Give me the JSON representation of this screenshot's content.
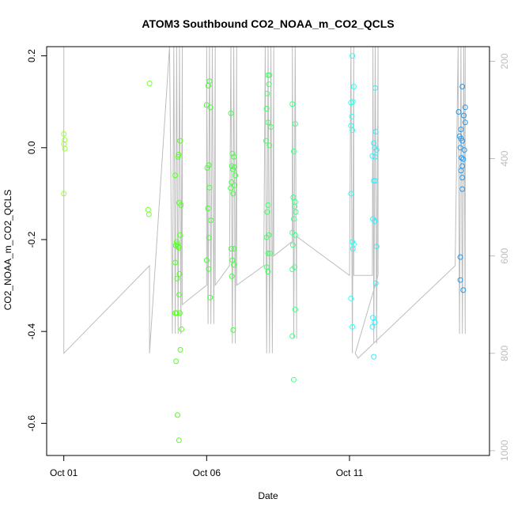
{
  "chart_data": {
    "type": "scatter",
    "title": "ATOM3 Southbound CO2_NOAA_m_CO2_QCLS",
    "xlabel": "Date",
    "ylabel": "CO2_NOAA_m_CO2_QCLS",
    "x_ticks": [
      "Oct 01",
      "Oct 06",
      "Oct 11"
    ],
    "x_tick_values": [
      1,
      6,
      11
    ],
    "xlim": [
      0.4,
      15.9
    ],
    "y_ticks": [
      "-0.6",
      "-0.4",
      "-0.2",
      "0.0",
      "0.2"
    ],
    "y_tick_values": [
      -0.6,
      -0.4,
      -0.2,
      0.0,
      0.2
    ],
    "ylim": [
      -0.67,
      0.22
    ],
    "y2_ticks": [
      "200",
      "400",
      "600",
      "800",
      "1000"
    ],
    "y2_tick_values": [
      200,
      400,
      600,
      800,
      1000
    ],
    "y2_ylim": [
      170,
      1010
    ],
    "y2_reversed": true,
    "y2_color": "#bdbdbd",
    "point_color_scale": "date (yellow-green to blue)",
    "points": [
      {
        "x": 1.0,
        "y": 0.03,
        "c": "#99ff33"
      },
      {
        "x": 1.03,
        "y": 0.017,
        "c": "#99ff33"
      },
      {
        "x": 1.01,
        "y": 0.008,
        "c": "#99ff33"
      },
      {
        "x": 1.04,
        "y": -0.002,
        "c": "#99ff33"
      },
      {
        "x": 1.0,
        "y": -0.1,
        "c": "#99ff33"
      },
      {
        "x": 4.0,
        "y": 0.14,
        "c": "#77ff33"
      },
      {
        "x": 3.95,
        "y": -0.135,
        "c": "#77ff33"
      },
      {
        "x": 3.98,
        "y": -0.145,
        "c": "#77ff33"
      },
      {
        "x": 5.07,
        "y": 0.015,
        "c": "#55ff22"
      },
      {
        "x": 5.02,
        "y": -0.015,
        "c": "#55ff22"
      },
      {
        "x": 5.0,
        "y": -0.02,
        "c": "#55ff22"
      },
      {
        "x": 4.9,
        "y": -0.06,
        "c": "#55ff22"
      },
      {
        "x": 5.04,
        "y": -0.12,
        "c": "#55ff22"
      },
      {
        "x": 5.1,
        "y": -0.125,
        "c": "#55ff22"
      },
      {
        "x": 5.07,
        "y": -0.19,
        "c": "#55ff22"
      },
      {
        "x": 4.95,
        "y": -0.205,
        "c": "#55ff22"
      },
      {
        "x": 4.97,
        "y": -0.21,
        "c": "#55ff22"
      },
      {
        "x": 5.0,
        "y": -0.215,
        "c": "#55ff22"
      },
      {
        "x": 4.92,
        "y": -0.213,
        "c": "#55ff22"
      },
      {
        "x": 5.03,
        "y": -0.218,
        "c": "#55ff22"
      },
      {
        "x": 4.9,
        "y": -0.25,
        "c": "#55ff22"
      },
      {
        "x": 5.05,
        "y": -0.275,
        "c": "#55ff22"
      },
      {
        "x": 4.97,
        "y": -0.285,
        "c": "#55ff22"
      },
      {
        "x": 5.04,
        "y": -0.32,
        "c": "#55ff22"
      },
      {
        "x": 4.9,
        "y": -0.36,
        "c": "#55ff22"
      },
      {
        "x": 4.95,
        "y": -0.36,
        "c": "#55ff22"
      },
      {
        "x": 5.06,
        "y": -0.36,
        "c": "#55ff22"
      },
      {
        "x": 5.12,
        "y": -0.395,
        "c": "#55ff22"
      },
      {
        "x": 5.08,
        "y": -0.44,
        "c": "#55ff22"
      },
      {
        "x": 4.93,
        "y": -0.465,
        "c": "#55ff22"
      },
      {
        "x": 4.98,
        "y": -0.582,
        "c": "#55ff22"
      },
      {
        "x": 5.03,
        "y": -0.637,
        "c": "#55ff22"
      },
      {
        "x": 6.1,
        "y": 0.145,
        "c": "#44ff33"
      },
      {
        "x": 6.06,
        "y": 0.135,
        "c": "#44ff33"
      },
      {
        "x": 6.0,
        "y": 0.093,
        "c": "#44ff33"
      },
      {
        "x": 6.13,
        "y": 0.088,
        "c": "#44ff33"
      },
      {
        "x": 6.08,
        "y": -0.038,
        "c": "#44ff33"
      },
      {
        "x": 6.02,
        "y": -0.044,
        "c": "#44ff33"
      },
      {
        "x": 6.1,
        "y": -0.087,
        "c": "#44ff33"
      },
      {
        "x": 6.05,
        "y": -0.132,
        "c": "#44ff33"
      },
      {
        "x": 6.15,
        "y": -0.158,
        "c": "#44ff33"
      },
      {
        "x": 6.08,
        "y": -0.196,
        "c": "#44ff33"
      },
      {
        "x": 6.0,
        "y": -0.245,
        "c": "#44ff33"
      },
      {
        "x": 6.07,
        "y": -0.264,
        "c": "#44ff33"
      },
      {
        "x": 6.12,
        "y": -0.326,
        "c": "#44ff33"
      },
      {
        "x": 6.85,
        "y": 0.075,
        "c": "#44ff44"
      },
      {
        "x": 6.9,
        "y": -0.013,
        "c": "#44ff44"
      },
      {
        "x": 6.95,
        "y": -0.02,
        "c": "#44ff44"
      },
      {
        "x": 6.88,
        "y": -0.04,
        "c": "#44ff44"
      },
      {
        "x": 6.97,
        "y": -0.042,
        "c": "#44ff44"
      },
      {
        "x": 6.92,
        "y": -0.047,
        "c": "#44ff44"
      },
      {
        "x": 7.0,
        "y": -0.06,
        "c": "#44ff44"
      },
      {
        "x": 6.87,
        "y": -0.075,
        "c": "#44ff44"
      },
      {
        "x": 6.98,
        "y": -0.082,
        "c": "#44ff44"
      },
      {
        "x": 6.84,
        "y": -0.088,
        "c": "#44ff44"
      },
      {
        "x": 6.93,
        "y": -0.1,
        "c": "#44ff44"
      },
      {
        "x": 6.86,
        "y": -0.22,
        "c": "#44ff44"
      },
      {
        "x": 6.96,
        "y": -0.22,
        "c": "#44ff44"
      },
      {
        "x": 6.9,
        "y": -0.245,
        "c": "#44ff44"
      },
      {
        "x": 6.95,
        "y": -0.255,
        "c": "#44ff44"
      },
      {
        "x": 6.88,
        "y": -0.28,
        "c": "#44ff44"
      },
      {
        "x": 6.93,
        "y": -0.397,
        "c": "#44ff44"
      },
      {
        "x": 8.15,
        "y": 0.158,
        "c": "#44ff66"
      },
      {
        "x": 8.2,
        "y": 0.158,
        "c": "#44ff66"
      },
      {
        "x": 8.18,
        "y": 0.138,
        "c": "#44ff66"
      },
      {
        "x": 8.12,
        "y": 0.118,
        "c": "#44ff66"
      },
      {
        "x": 8.1,
        "y": 0.085,
        "c": "#44ff66"
      },
      {
        "x": 8.15,
        "y": 0.055,
        "c": "#44ff66"
      },
      {
        "x": 8.25,
        "y": 0.045,
        "c": "#44ff66"
      },
      {
        "x": 8.08,
        "y": 0.015,
        "c": "#44ff66"
      },
      {
        "x": 8.2,
        "y": 0.005,
        "c": "#44ff66"
      },
      {
        "x": 8.15,
        "y": -0.125,
        "c": "#44ff66"
      },
      {
        "x": 8.12,
        "y": -0.14,
        "c": "#44ff66"
      },
      {
        "x": 8.18,
        "y": -0.19,
        "c": "#44ff66"
      },
      {
        "x": 8.1,
        "y": -0.195,
        "c": "#44ff66"
      },
      {
        "x": 8.15,
        "y": -0.23,
        "c": "#44ff66"
      },
      {
        "x": 8.22,
        "y": -0.23,
        "c": "#44ff66"
      },
      {
        "x": 8.1,
        "y": -0.26,
        "c": "#44ff66"
      },
      {
        "x": 8.15,
        "y": -0.27,
        "c": "#44ff66"
      },
      {
        "x": 9.0,
        "y": 0.095,
        "c": "#44ff88"
      },
      {
        "x": 9.1,
        "y": 0.052,
        "c": "#44ff88"
      },
      {
        "x": 9.05,
        "y": -0.008,
        "c": "#44ff88"
      },
      {
        "x": 9.03,
        "y": -0.108,
        "c": "#44ff88"
      },
      {
        "x": 9.1,
        "y": -0.118,
        "c": "#44ff88"
      },
      {
        "x": 9.08,
        "y": -0.128,
        "c": "#44ff88"
      },
      {
        "x": 9.12,
        "y": -0.14,
        "c": "#44ff88"
      },
      {
        "x": 9.05,
        "y": -0.155,
        "c": "#44ff88"
      },
      {
        "x": 9.0,
        "y": -0.185,
        "c": "#44ff88"
      },
      {
        "x": 9.1,
        "y": -0.19,
        "c": "#44ff88"
      },
      {
        "x": 9.02,
        "y": -0.212,
        "c": "#44ff88"
      },
      {
        "x": 9.08,
        "y": -0.26,
        "c": "#44ff88"
      },
      {
        "x": 9.0,
        "y": -0.265,
        "c": "#44ff88"
      },
      {
        "x": 9.1,
        "y": -0.352,
        "c": "#44ff88"
      },
      {
        "x": 9.0,
        "y": -0.41,
        "c": "#44ff88"
      },
      {
        "x": 9.05,
        "y": -0.505,
        "c": "#44ff88"
      },
      {
        "x": 11.1,
        "y": 0.2,
        "c": "#33ffee"
      },
      {
        "x": 11.15,
        "y": 0.133,
        "c": "#33ffee"
      },
      {
        "x": 11.05,
        "y": 0.098,
        "c": "#33ffee"
      },
      {
        "x": 11.12,
        "y": 0.1,
        "c": "#33ffee"
      },
      {
        "x": 11.08,
        "y": 0.068,
        "c": "#33ffee"
      },
      {
        "x": 11.05,
        "y": 0.048,
        "c": "#33ffee"
      },
      {
        "x": 11.1,
        "y": 0.038,
        "c": "#33ffee"
      },
      {
        "x": 11.05,
        "y": -0.1,
        "c": "#33ffee"
      },
      {
        "x": 11.1,
        "y": -0.205,
        "c": "#33ffee"
      },
      {
        "x": 11.15,
        "y": -0.21,
        "c": "#33ffee"
      },
      {
        "x": 11.12,
        "y": -0.22,
        "c": "#33ffee"
      },
      {
        "x": 11.05,
        "y": -0.328,
        "c": "#33ffee"
      },
      {
        "x": 11.1,
        "y": -0.39,
        "c": "#33ffee"
      },
      {
        "x": 11.9,
        "y": 0.13,
        "c": "#33eeff"
      },
      {
        "x": 11.92,
        "y": 0.035,
        "c": "#33eeff"
      },
      {
        "x": 11.85,
        "y": 0.01,
        "c": "#33eeff"
      },
      {
        "x": 11.88,
        "y": 0.0,
        "c": "#33eeff"
      },
      {
        "x": 11.95,
        "y": -0.005,
        "c": "#33eeff"
      },
      {
        "x": 11.9,
        "y": -0.02,
        "c": "#33eeff"
      },
      {
        "x": 11.8,
        "y": -0.018,
        "c": "#33eeff"
      },
      {
        "x": 11.85,
        "y": -0.072,
        "c": "#33eeff"
      },
      {
        "x": 11.9,
        "y": -0.072,
        "c": "#33eeff"
      },
      {
        "x": 11.82,
        "y": -0.155,
        "c": "#33eeff"
      },
      {
        "x": 11.88,
        "y": -0.16,
        "c": "#33eeff"
      },
      {
        "x": 11.95,
        "y": -0.215,
        "c": "#33eeff"
      },
      {
        "x": 11.92,
        "y": -0.295,
        "c": "#33eeff"
      },
      {
        "x": 11.82,
        "y": -0.37,
        "c": "#33eeff"
      },
      {
        "x": 11.88,
        "y": -0.38,
        "c": "#33eeff"
      },
      {
        "x": 11.8,
        "y": -0.39,
        "c": "#33eeff"
      },
      {
        "x": 11.85,
        "y": -0.455,
        "c": "#33eeff"
      },
      {
        "x": 14.95,
        "y": 0.133,
        "c": "#2299ee"
      },
      {
        "x": 15.05,
        "y": 0.088,
        "c": "#2299ee"
      },
      {
        "x": 14.82,
        "y": 0.078,
        "c": "#2299ee"
      },
      {
        "x": 15.0,
        "y": 0.07,
        "c": "#2299ee"
      },
      {
        "x": 15.05,
        "y": 0.055,
        "c": "#2299ee"
      },
      {
        "x": 14.9,
        "y": 0.04,
        "c": "#2299ee"
      },
      {
        "x": 14.85,
        "y": 0.025,
        "c": "#2299ee"
      },
      {
        "x": 14.9,
        "y": 0.02,
        "c": "#2299ee"
      },
      {
        "x": 14.95,
        "y": 0.015,
        "c": "#2299ee"
      },
      {
        "x": 14.88,
        "y": 0.0,
        "c": "#2299ee"
      },
      {
        "x": 15.02,
        "y": -0.005,
        "c": "#2299ee"
      },
      {
        "x": 14.92,
        "y": -0.022,
        "c": "#2299ee"
      },
      {
        "x": 14.98,
        "y": -0.025,
        "c": "#2299ee"
      },
      {
        "x": 14.95,
        "y": -0.04,
        "c": "#2299ee"
      },
      {
        "x": 14.9,
        "y": -0.05,
        "c": "#2299ee"
      },
      {
        "x": 14.95,
        "y": -0.065,
        "c": "#2299ee"
      },
      {
        "x": 14.95,
        "y": -0.09,
        "c": "#2299ee"
      },
      {
        "x": 14.88,
        "y": -0.238,
        "c": "#2299ee"
      },
      {
        "x": 14.88,
        "y": -0.288,
        "c": "#2299ee"
      },
      {
        "x": 14.98,
        "y": -0.31,
        "c": "#2299ee"
      }
    ],
    "pressure_line_color": "#bdbdbd",
    "pressure_line": [
      [
        1.0,
        170
      ],
      [
        1.0,
        800
      ],
      [
        4.0,
        620
      ],
      [
        4.0,
        800
      ],
      [
        4.7,
        170
      ],
      [
        4.8,
        760
      ],
      [
        4.85,
        170
      ],
      [
        4.9,
        760
      ],
      [
        4.95,
        170
      ],
      [
        5.0,
        760
      ],
      [
        5.05,
        170
      ],
      [
        5.1,
        760
      ],
      [
        5.15,
        170
      ],
      [
        5.15,
        700
      ],
      [
        6.0,
        660
      ],
      [
        6.0,
        170
      ],
      [
        6.05,
        740
      ],
      [
        6.1,
        170
      ],
      [
        6.15,
        740
      ],
      [
        6.2,
        170
      ],
      [
        6.25,
        740
      ],
      [
        6.3,
        170
      ],
      [
        6.3,
        660
      ],
      [
        6.8,
        620
      ],
      [
        6.85,
        170
      ],
      [
        6.9,
        780
      ],
      [
        6.95,
        170
      ],
      [
        7.0,
        780
      ],
      [
        7.05,
        170
      ],
      [
        7.05,
        660
      ],
      [
        8.0,
        620
      ],
      [
        8.05,
        170
      ],
      [
        8.1,
        800
      ],
      [
        8.15,
        170
      ],
      [
        8.2,
        800
      ],
      [
        8.25,
        170
      ],
      [
        8.3,
        800
      ],
      [
        8.35,
        170
      ],
      [
        8.35,
        600
      ],
      [
        9.0,
        570
      ],
      [
        9.0,
        170
      ],
      [
        9.05,
        770
      ],
      [
        9.1,
        170
      ],
      [
        9.15,
        770
      ],
      [
        9.15,
        560
      ],
      [
        11.0,
        640
      ],
      [
        11.05,
        170
      ],
      [
        11.1,
        800
      ],
      [
        11.15,
        170
      ],
      [
        11.15,
        640
      ],
      [
        11.8,
        640
      ],
      [
        11.82,
        170
      ],
      [
        11.85,
        780
      ],
      [
        11.9,
        170
      ],
      [
        11.95,
        780
      ],
      [
        12.0,
        170
      ],
      [
        12.0,
        640
      ],
      [
        11.2,
        800
      ],
      [
        11.3,
        810
      ],
      [
        14.7,
        620
      ],
      [
        14.8,
        170
      ],
      [
        14.85,
        760
      ],
      [
        14.9,
        170
      ],
      [
        14.95,
        760
      ],
      [
        15.0,
        170
      ],
      [
        15.05,
        760
      ],
      [
        15.05,
        170
      ]
    ]
  }
}
